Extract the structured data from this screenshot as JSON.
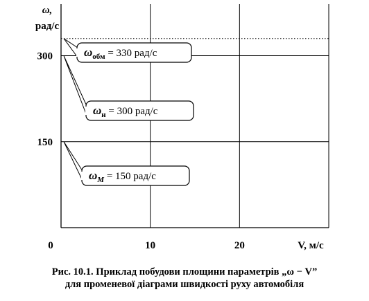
{
  "chart_data": {
    "type": "line",
    "title": "",
    "xlabel": "V, м/с",
    "ylabel_symbol": "ω,",
    "ylabel_unit": "рад/с",
    "x_origin_label": "0",
    "xlim": [
      0,
      30
    ],
    "ylim": [
      0,
      390
    ],
    "x_ticks": [
      10,
      20
    ],
    "y_ticks": [
      150,
      300
    ],
    "grid": true,
    "series": [
      {
        "y": 330,
        "style": "dotted"
      },
      {
        "y": 300,
        "style": "solid"
      },
      {
        "y": 150,
        "style": "solid"
      }
    ],
    "annotations": [
      {
        "symbol": "ω",
        "subscript": "обм",
        "text": "= 330 рад/с",
        "y": 330
      },
      {
        "symbol": "ω",
        "subscript": "н",
        "text": "= 300 рад/с",
        "y": 300
      },
      {
        "symbol": "ω",
        "subscript": "M",
        "text": "= 150 рад/с",
        "y": 150
      }
    ]
  },
  "caption": {
    "line1": "Рис. 10.1. Приклад побудови площини параметрів „ω − V”",
    "line2": "для променевої діаграми швидкості руху автомобіля"
  }
}
